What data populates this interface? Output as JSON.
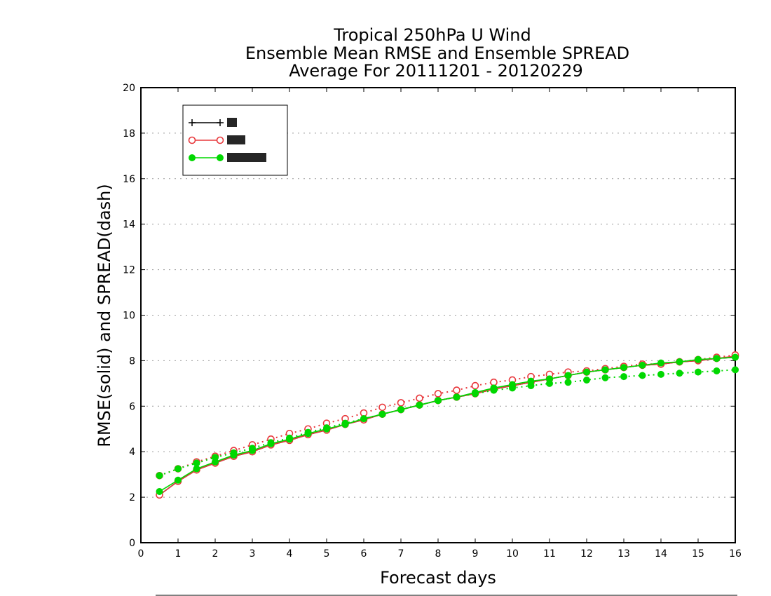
{
  "chart_data": {
    "type": "line",
    "title_lines": [
      "Tropical 250hPa U Wind",
      "Ensemble Mean RMSE and Ensemble SPREAD",
      "Average For 20111201 - 20120229"
    ],
    "xlabel": "Forecast days",
    "ylabel": "RMSE(solid) and SPREAD(dash)",
    "xlim": [
      0,
      16
    ],
    "ylim": [
      0,
      20
    ],
    "xticks": [
      "0",
      "1",
      "2",
      "3",
      "4",
      "5",
      "6",
      "7",
      "8",
      "9",
      "10",
      "11",
      "12",
      "13",
      "14",
      "15",
      "16"
    ],
    "yticks": [
      "0",
      "2",
      "4",
      "6",
      "8",
      "10",
      "12",
      "14",
      "16",
      "18",
      "20"
    ],
    "grid": "horizontal dotted",
    "legend_position": "top-left",
    "x": [
      0.5,
      1,
      1.5,
      2,
      2.5,
      3,
      3.5,
      4,
      4.5,
      5,
      5.5,
      6,
      6.5,
      7,
      7.5,
      8,
      8.5,
      9,
      9.5,
      10,
      10.5,
      11,
      11.5,
      12,
      12.5,
      13,
      13.5,
      14,
      14.5,
      15,
      15.5,
      16
    ],
    "series": [
      {
        "name": "",
        "color": "#000000",
        "marker": "plus",
        "kind": "rmse",
        "values": [
          2.1,
          2.7,
          3.2,
          3.5,
          3.8,
          4.0,
          4.3,
          4.5,
          4.75,
          4.95,
          5.2,
          5.4,
          5.65,
          5.85,
          6.05,
          6.25,
          6.4,
          6.55,
          6.75,
          6.9,
          7.05,
          7.2,
          7.35,
          7.5,
          7.6,
          7.7,
          7.8,
          7.85,
          7.95,
          8.0,
          8.1,
          8.15
        ]
      },
      {
        "name": "",
        "color": "#e8383c",
        "marker": "open-circle",
        "kind": "rmse",
        "values": [
          2.1,
          2.7,
          3.2,
          3.5,
          3.8,
          4.0,
          4.3,
          4.5,
          4.75,
          4.95,
          5.2,
          5.4,
          5.65,
          5.85,
          6.05,
          6.25,
          6.4,
          6.55,
          6.75,
          6.9,
          7.05,
          7.2,
          7.35,
          7.5,
          7.6,
          7.7,
          7.8,
          7.85,
          7.95,
          8.0,
          8.1,
          8.2
        ]
      },
      {
        "name": "",
        "color": "#e8383c",
        "marker": "open-circle",
        "kind": "spread",
        "values": [
          2.95,
          3.25,
          3.55,
          3.8,
          4.05,
          4.3,
          4.55,
          4.8,
          5.0,
          5.25,
          5.45,
          5.7,
          5.95,
          6.15,
          6.35,
          6.55,
          6.7,
          6.9,
          7.05,
          7.15,
          7.3,
          7.4,
          7.5,
          7.55,
          7.65,
          7.75,
          7.85,
          7.85,
          7.95,
          8.05,
          8.15,
          8.25
        ]
      },
      {
        "name": "",
        "color": "#00d800",
        "marker": "filled-circle",
        "kind": "rmse",
        "values": [
          2.25,
          2.75,
          3.25,
          3.55,
          3.85,
          4.05,
          4.35,
          4.55,
          4.8,
          5.0,
          5.2,
          5.45,
          5.65,
          5.85,
          6.05,
          6.25,
          6.4,
          6.6,
          6.8,
          6.95,
          7.1,
          7.2,
          7.35,
          7.5,
          7.6,
          7.7,
          7.8,
          7.9,
          7.95,
          8.05,
          8.1,
          8.15
        ]
      },
      {
        "name": "",
        "color": "#00d800",
        "marker": "filled-circle",
        "kind": "spread",
        "values": [
          2.95,
          3.25,
          3.5,
          3.75,
          3.95,
          4.15,
          4.4,
          4.6,
          4.85,
          5.05,
          5.25,
          5.45,
          5.65,
          5.85,
          6.05,
          6.25,
          6.4,
          6.55,
          6.7,
          6.8,
          6.9,
          7.0,
          7.05,
          7.15,
          7.25,
          7.3,
          7.35,
          7.4,
          7.45,
          7.5,
          7.55,
          7.6
        ]
      }
    ],
    "legend_entries": [
      {
        "color": "#000000",
        "marker": "plus"
      },
      {
        "color": "#e8383c",
        "marker": "open-circle"
      },
      {
        "color": "#00d800",
        "marker": "filled-circle"
      }
    ]
  }
}
